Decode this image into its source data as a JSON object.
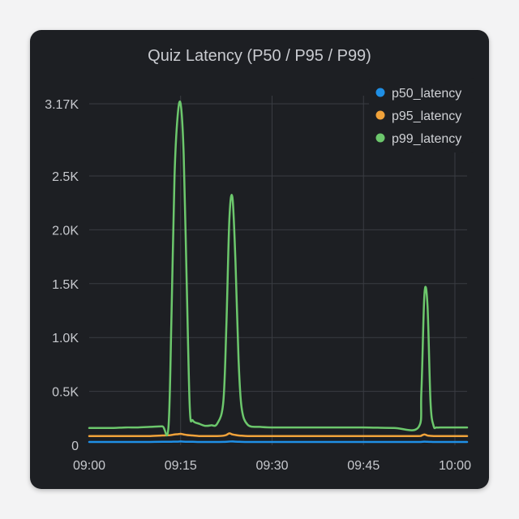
{
  "chart_data": {
    "type": "line",
    "title": "Quiz Latency (P50 / P95 / P99)",
    "xlabel": "",
    "ylabel": "",
    "x_tick_labels": [
      "09:00",
      "09:15",
      "09:30",
      "09:45",
      "10:00"
    ],
    "x_tick_minutes": [
      0,
      15,
      30,
      45,
      60
    ],
    "xlim_minutes": [
      0,
      62
    ],
    "y_tick_labels": [
      "0",
      "0.5K",
      "1.0K",
      "1.5K",
      "2.0K",
      "2.5K",
      "3.17K"
    ],
    "y_tick_values": [
      0,
      500,
      1000,
      1500,
      2000,
      2500,
      3170
    ],
    "ylim": [
      0,
      3170
    ],
    "grid": true,
    "legend_position": "top-right",
    "x_minutes": [
      0,
      2,
      4,
      6,
      8,
      10,
      12,
      13,
      13.5,
      14,
      14.5,
      15,
      15.5,
      16,
      16.5,
      17,
      18,
      19,
      20,
      21,
      22,
      22.5,
      23,
      23.5,
      24,
      24.5,
      25,
      26,
      28,
      30,
      35,
      40,
      45,
      50,
      54,
      54.5,
      55,
      55.5,
      56,
      56.5,
      57,
      58,
      60,
      62
    ],
    "series": [
      {
        "name": "p50_latency",
        "color": "#1f8fe5",
        "values": [
          30,
          30,
          30,
          30,
          30,
          30,
          32,
          32,
          32,
          33,
          33,
          35,
          33,
          32,
          32,
          32,
          30,
          30,
          30,
          30,
          31,
          32,
          34,
          35,
          33,
          32,
          31,
          30,
          30,
          30,
          30,
          30,
          30,
          30,
          30,
          31,
          33,
          32,
          31,
          30,
          30,
          30,
          30,
          30
        ]
      },
      {
        "name": "p95_latency",
        "color": "#f0a23a",
        "values": [
          85,
          85,
          85,
          85,
          85,
          85,
          90,
          92,
          95,
          100,
          102,
          105,
          100,
          95,
          92,
          90,
          85,
          85,
          85,
          85,
          88,
          95,
          110,
          100,
          95,
          90,
          88,
          85,
          85,
          85,
          85,
          85,
          85,
          85,
          85,
          90,
          100,
          90,
          87,
          85,
          85,
          85,
          85,
          85
        ]
      },
      {
        "name": "p99_latency",
        "color": "#6cc76c",
        "values": [
          160,
          160,
          160,
          165,
          165,
          170,
          175,
          165,
          1200,
          2500,
          3050,
          3170,
          2700,
          1500,
          350,
          230,
          200,
          180,
          185,
          200,
          400,
          1100,
          2100,
          2300,
          1700,
          800,
          350,
          190,
          170,
          165,
          165,
          165,
          165,
          160,
          165,
          500,
          1400,
          1300,
          400,
          180,
          165,
          165,
          165,
          165
        ]
      }
    ]
  }
}
